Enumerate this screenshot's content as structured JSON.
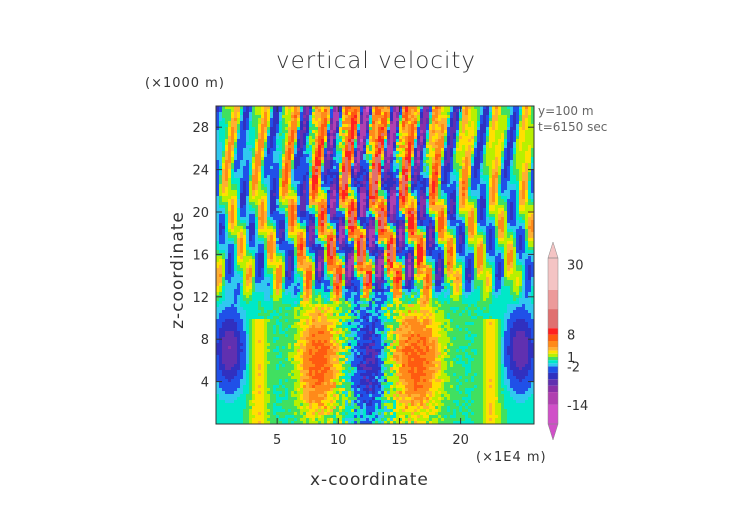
{
  "chart_data": {
    "type": "heatmap",
    "title": "vertical velocity",
    "xlabel": "x-coordinate",
    "ylabel": "z-coordinate",
    "x_unit": "(×1E4 m)",
    "z_unit": "(×1000 m)",
    "annotations": [
      "y=100 m",
      "t=6150 sec"
    ],
    "xlim": [
      0,
      26
    ],
    "ylim": [
      0,
      30
    ],
    "xticks": [
      5,
      10,
      15,
      20
    ],
    "yticks": [
      4,
      8,
      12,
      16,
      20,
      24,
      28
    ],
    "colorbar": {
      "ticks": [
        30,
        8,
        1,
        -2,
        -14
      ],
      "range": [
        -20,
        32
      ],
      "levels": [
        {
          "lo": 22,
          "hi": 32,
          "color": "#f4c4c4"
        },
        {
          "lo": 16,
          "hi": 22,
          "color": "#ec9a9a"
        },
        {
          "lo": 10,
          "hi": 16,
          "color": "#e07070"
        },
        {
          "lo": 8,
          "hi": 10,
          "color": "#ff2020"
        },
        {
          "lo": 6,
          "hi": 8,
          "color": "#ff5a10"
        },
        {
          "lo": 4,
          "hi": 6,
          "color": "#ff8a1a"
        },
        {
          "lo": 3,
          "hi": 4,
          "color": "#ffb030"
        },
        {
          "lo": 2,
          "hi": 3,
          "color": "#ffe000"
        },
        {
          "lo": 1,
          "hi": 2,
          "color": "#b8f000"
        },
        {
          "lo": 0,
          "hi": 1,
          "color": "#40e060"
        },
        {
          "lo": -1,
          "hi": 0,
          "color": "#00e8c8"
        },
        {
          "lo": -2,
          "hi": -1,
          "color": "#30c8f0"
        },
        {
          "lo": -4,
          "hi": -2,
          "color": "#2050e8"
        },
        {
          "lo": -6,
          "hi": -4,
          "color": "#3030c0"
        },
        {
          "lo": -8,
          "hi": -6,
          "color": "#6030b0"
        },
        {
          "lo": -10,
          "hi": -8,
          "color": "#8a30a8"
        },
        {
          "lo": -14,
          "hi": -10,
          "color": "#b040b0"
        },
        {
          "lo": -20,
          "hi": -14,
          "color": "#d050c8"
        }
      ]
    }
  }
}
